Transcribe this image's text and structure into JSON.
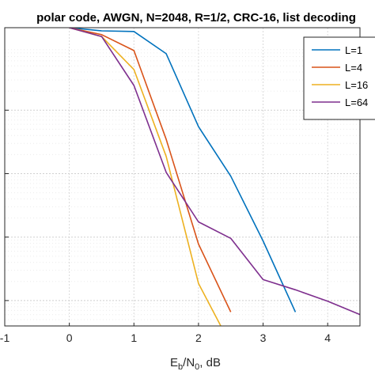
{
  "chart_data": {
    "type": "line",
    "title": "polar code, AWGN, N=2048, R=1/2, CRC-16, list decoding",
    "xlabel": {
      "main": "E",
      "sub1": "b",
      "mid": "/N",
      "sub2": "0",
      "tail": ", dB"
    },
    "ylabel": "",
    "xlim": [
      -1,
      4.5
    ],
    "ylim_log10": [
      -4.7,
      0.0
    ],
    "y_scale": "log",
    "x_ticks": [
      -1,
      0,
      1,
      2,
      3,
      4
    ],
    "x_tick_labels": [
      "-1",
      "0",
      "1",
      "2",
      "3",
      "4"
    ],
    "y_grid_log10": [
      -1.3,
      -2.3,
      -3.3,
      -4.3
    ],
    "grid": "on",
    "legend_position": "top-right",
    "series": [
      {
        "name": "L=1",
        "color": "#0072BD",
        "x": [
          0,
          0.5,
          1,
          1.5,
          2,
          2.5,
          3,
          3.5
        ],
        "y_log10": [
          0.0,
          -0.05,
          -0.06,
          -0.41,
          -1.56,
          -2.34,
          -3.36,
          -4.48
        ]
      },
      {
        "name": "L=4",
        "color": "#D95319",
        "x": [
          0,
          0.5,
          1,
          1.5,
          2,
          2.5
        ],
        "y_log10": [
          0.0,
          -0.11,
          -0.36,
          -1.76,
          -3.41,
          -4.48
        ]
      },
      {
        "name": "L=16",
        "color": "#EDB120",
        "x": [
          0,
          0.5,
          1,
          1.5,
          2,
          2.35
        ],
        "y_log10": [
          0.0,
          -0.14,
          -0.66,
          -2.03,
          -4.03,
          -4.71
        ]
      },
      {
        "name": "L=64",
        "color": "#7E2F8E",
        "x": [
          0,
          0.5,
          1,
          1.5,
          2,
          2.5,
          3,
          3.5,
          4,
          4.5
        ],
        "y_log10": [
          0.0,
          -0.14,
          -0.91,
          -2.28,
          -3.06,
          -3.32,
          -3.97,
          -4.13,
          -4.31,
          -4.52
        ]
      }
    ],
    "legend_labels": [
      "L=1",
      "L=4",
      "L=16",
      "L=64"
    ]
  }
}
